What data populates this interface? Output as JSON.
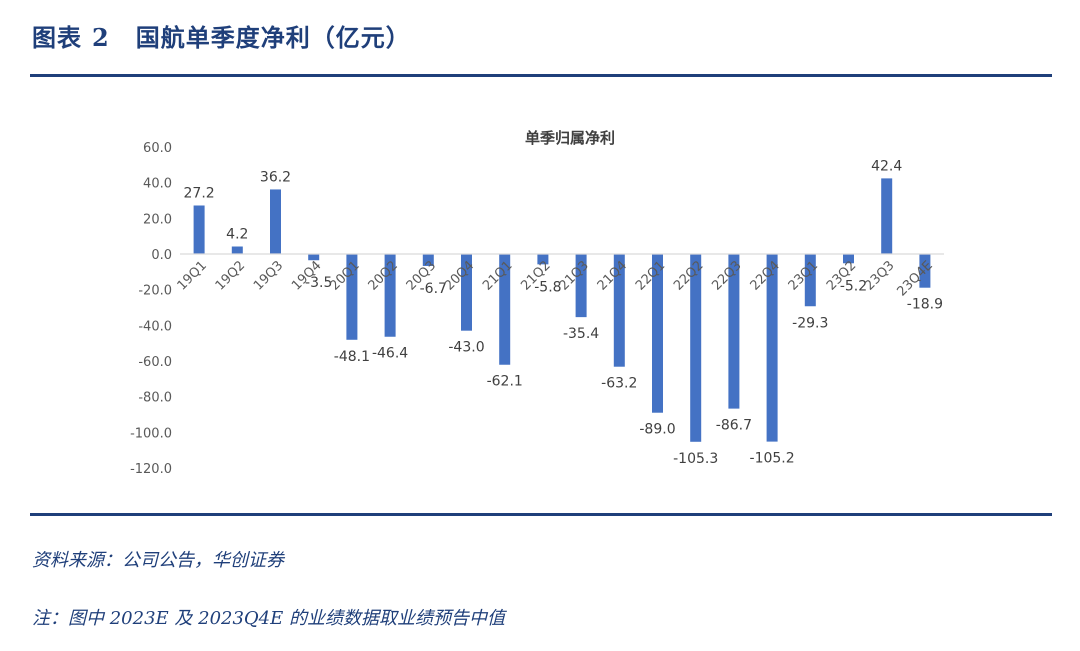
{
  "figure": {
    "label": "图表",
    "number": "2",
    "title": "国航单季度净利（亿元）"
  },
  "footer": {
    "source": "资料来源：公司公告，华创证券",
    "note": "注：图中 2023E 及 2023Q4E 的业绩数据取业绩预告中值"
  },
  "chart_data": {
    "type": "bar",
    "title": "单季归属净利",
    "xlabel": "",
    "ylabel": "",
    "ylim": [
      -120,
      60
    ],
    "yticks": [
      "60.0",
      "40.0",
      "20.0",
      "0.0",
      "-20.0",
      "-40.0",
      "-60.0",
      "-80.0",
      "-100.0",
      "-120.0"
    ],
    "grid": false,
    "legend": "none",
    "bar_color": "#4472c4",
    "categories": [
      "19Q1",
      "19Q2",
      "19Q3",
      "19Q4",
      "20Q1",
      "20Q2",
      "20Q3",
      "20Q4",
      "21Q1",
      "21Q2",
      "21Q3",
      "21Q4",
      "22Q1",
      "22Q2",
      "22Q3",
      "22Q4",
      "23Q1",
      "23Q2",
      "23Q3",
      "23Q4E"
    ],
    "values": [
      27.2,
      4.2,
      36.2,
      -3.5,
      -48.1,
      -46.4,
      -6.7,
      -43.0,
      -62.1,
      -5.8,
      -35.4,
      -63.2,
      -89.0,
      -105.3,
      -86.7,
      -105.2,
      -29.3,
      -5.2,
      42.4,
      -18.9
    ],
    "value_labels": [
      "27.2",
      "4.2",
      "36.2",
      "-3.5",
      "-48.1",
      "-46.4",
      "-6.7",
      "-43.0",
      "-62.1",
      "-5.8",
      "-35.4",
      "-63.2",
      "-89.0",
      "-105.3",
      "-86.7",
      "-105.2",
      "-29.3",
      "-5.2",
      "42.4",
      "-18.9"
    ]
  }
}
